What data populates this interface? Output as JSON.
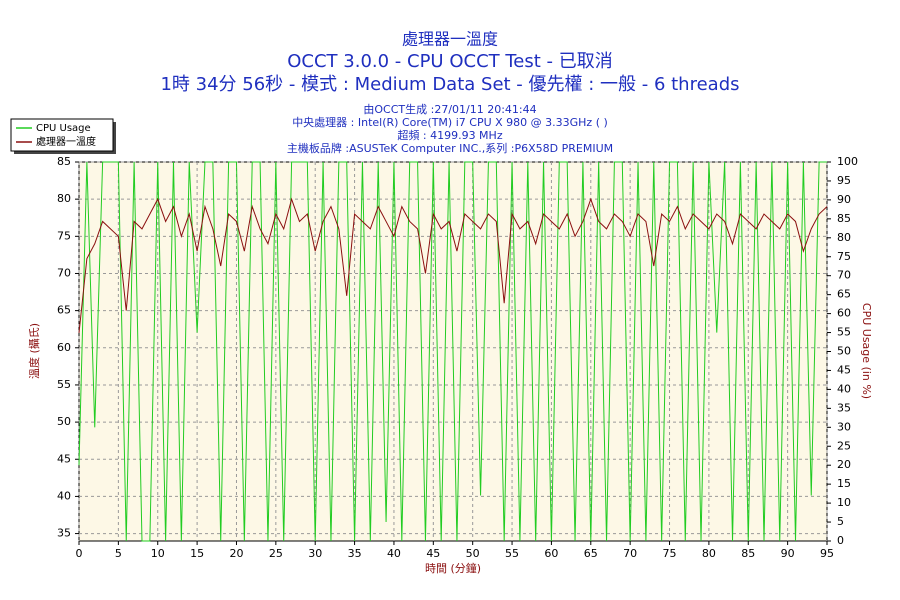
{
  "chart_data": {
    "type": "line",
    "title": "處理器一溫度",
    "title_lines": [
      "OCCT 3.0.0 - CPU OCCT Test - 已取消",
      "1時 34分 56秒 - 模式 : Medium Data Set - 優先權 : 一般 - 6 threads"
    ],
    "subtitle_lines": [
      "由OCCT生成 :27/01/11 20:41:44",
      "中央處理器 : Intel(R) Core(TM) i7 CPU X 980 @ 3.33GHz (  )",
      "超頻 : 4199.93 MHz",
      "主機板品牌 :ASUSTeK Computer INC.,系列 :P6X58D PREMIUM"
    ],
    "x_label": "時間 (分鐘)",
    "y_label": "溫度 (攝氏)",
    "y2_label": "CPU Usage (in %)",
    "x": [
      0,
      1,
      2,
      3,
      4,
      5,
      6,
      7,
      8,
      9,
      10,
      11,
      12,
      13,
      14,
      15,
      16,
      17,
      18,
      19,
      20,
      21,
      22,
      23,
      24,
      25,
      26,
      27,
      28,
      29,
      30,
      31,
      32,
      33,
      34,
      35,
      36,
      37,
      38,
      39,
      40,
      41,
      42,
      43,
      44,
      45,
      46,
      47,
      48,
      49,
      50,
      51,
      52,
      53,
      54,
      55,
      56,
      57,
      58,
      59,
      60,
      61,
      62,
      63,
      64,
      65,
      66,
      67,
      68,
      69,
      70,
      71,
      72,
      73,
      74,
      75,
      76,
      77,
      78,
      79,
      80,
      81,
      82,
      83,
      84,
      85,
      86,
      87,
      88,
      89,
      90,
      91,
      92,
      93,
      94,
      95
    ],
    "series": [
      {
        "name": "CPU Usage",
        "color": "#22cc22",
        "axis": "y2",
        "values": [
          20,
          100,
          30,
          100,
          100,
          100,
          0,
          100,
          0,
          0,
          100,
          0,
          100,
          0,
          100,
          55,
          100,
          100,
          0,
          100,
          100,
          0,
          100,
          100,
          0,
          100,
          0,
          100,
          100,
          100,
          0,
          100,
          0,
          100,
          100,
          0,
          100,
          0,
          100,
          5,
          100,
          0,
          100,
          100,
          0,
          100,
          0,
          100,
          0,
          100,
          100,
          12,
          100,
          100,
          0,
          100,
          0,
          100,
          0,
          100,
          0,
          100,
          100,
          0,
          100,
          0,
          100,
          0,
          100,
          100,
          0,
          100,
          0,
          100,
          0,
          100,
          100,
          0,
          100,
          0,
          100,
          55,
          100,
          0,
          100,
          0,
          100,
          0,
          100,
          0,
          100,
          0,
          100,
          12,
          100,
          100
        ]
      },
      {
        "name": "處理器一溫度",
        "color": "#8b1010",
        "axis": "y",
        "values": [
          62,
          72,
          74,
          77,
          76,
          75,
          65,
          77,
          76,
          78,
          80,
          77,
          79,
          75,
          78,
          73,
          79,
          76,
          71,
          78,
          77,
          73,
          79,
          76,
          74,
          78,
          76,
          80,
          77,
          78,
          73,
          77,
          79,
          76,
          67,
          78,
          77,
          76,
          79,
          77,
          75,
          79,
          77,
          76,
          70,
          78,
          76,
          77,
          73,
          78,
          77,
          76,
          78,
          77,
          66,
          78,
          76,
          77,
          74,
          78,
          77,
          76,
          78,
          75,
          77,
          80,
          77,
          76,
          78,
          77,
          75,
          78,
          77,
          71,
          78,
          77,
          79,
          76,
          78,
          77,
          76,
          78,
          77,
          74,
          78,
          77,
          76,
          78,
          77,
          76,
          78,
          77,
          73,
          76,
          78,
          79
        ]
      }
    ],
    "xlim": [
      0,
      95
    ],
    "xticks": [
      0,
      5,
      10,
      15,
      20,
      25,
      30,
      35,
      40,
      45,
      50,
      55,
      60,
      65,
      70,
      75,
      80,
      85,
      90,
      95
    ],
    "ylim": [
      34,
      85
    ],
    "yticks": [
      35,
      40,
      45,
      50,
      55,
      60,
      65,
      70,
      75,
      80,
      85
    ],
    "y2lim": [
      0,
      100
    ],
    "y2ticks": [
      0,
      5,
      10,
      15,
      20,
      25,
      30,
      35,
      40,
      45,
      50,
      55,
      60,
      65,
      70,
      75,
      80,
      85,
      90,
      95,
      100
    ],
    "grid": true,
    "legend": "top-left"
  }
}
